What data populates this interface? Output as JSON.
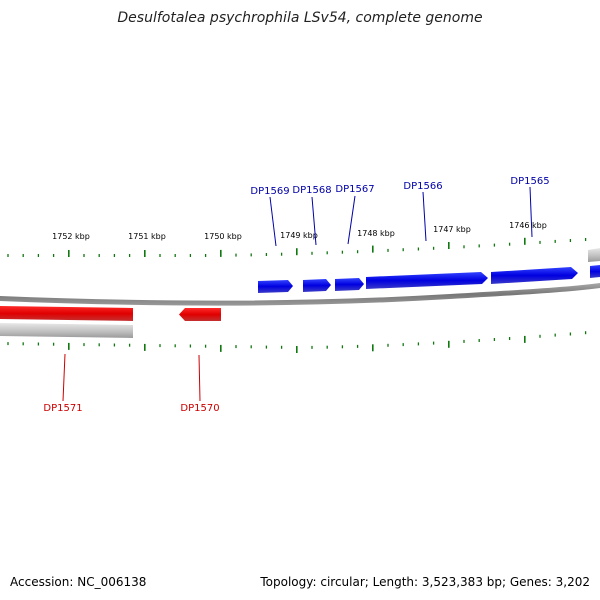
{
  "title": "Desulfotalea psychrophila LSv54, complete genome",
  "footer": {
    "accession": "Accession: NC_006138",
    "summary": "Topology: circular; Length: 3,523,383 bp; Genes: 3,202"
  },
  "scale_labels": [
    "1752 kbp",
    "1751 kbp",
    "1750 kbp",
    "1749 kbp",
    "1748 kbp",
    "1747 kbp",
    "1746 kbp"
  ],
  "genes_forward": [
    "DP1569",
    "DP1568",
    "DP1567",
    "DP1566",
    "DP1565"
  ],
  "genes_reverse": [
    "DP1571",
    "DP1570"
  ],
  "colors": {
    "forward": "#0000ee",
    "reverse": "#ee0000",
    "tick": "#117711",
    "backbone": "#888888"
  }
}
